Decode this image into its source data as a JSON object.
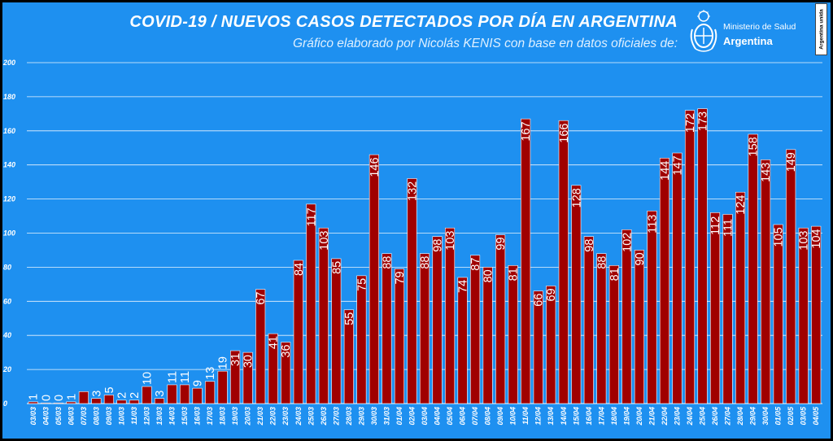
{
  "header": {
    "title": "COVID-19  /  NUEVOS CASOS DETECTADOS POR DÍA EN ARGENTINA",
    "subtitle": "Gráfico elaborado por Nicolás KENIS con base en datos oficiales de:"
  },
  "logo": {
    "icon": "coat-of-arms-icon",
    "line1": "Ministerio de Salud",
    "line2": "Argentina"
  },
  "badge": {
    "text": "Argentina unida"
  },
  "colors": {
    "background": "#1e90f0",
    "bar_fill": "#a00000",
    "bar_stroke": "#ffffff",
    "gridline": "#ffffff",
    "text": "#ffffff"
  },
  "chart_data": {
    "type": "bar",
    "title": "COVID-19  /  NUEVOS CASOS DETECTADOS POR DÍA EN ARGENTINA",
    "xlabel": "",
    "ylabel": "",
    "ylim": [
      0,
      200
    ],
    "yticks": [
      0,
      20,
      40,
      60,
      80,
      100,
      120,
      140,
      160,
      180,
      200
    ],
    "grid": true,
    "legend": "none",
    "categories": [
      "03/03",
      "04/03",
      "05/03",
      "06/03",
      "07/03",
      "08/03",
      "09/03",
      "10/03",
      "11/03",
      "12/03",
      "13/03",
      "14/03",
      "15/03",
      "16/03",
      "17/03",
      "18/03",
      "19/03",
      "20/03",
      "21/03",
      "22/03",
      "23/03",
      "24/03",
      "25/03",
      "26/03",
      "27/03",
      "28/03",
      "29/03",
      "30/03",
      "31/03",
      "01/04",
      "02/04",
      "03/04",
      "04/04",
      "05/04",
      "06/04",
      "07/04",
      "08/04",
      "09/04",
      "10/04",
      "11/04",
      "12/04",
      "13/04",
      "14/04",
      "15/04",
      "16/04",
      "17/04",
      "18/04",
      "19/04",
      "20/04",
      "21/04",
      "22/04",
      "23/04",
      "24/04",
      "25/04",
      "26/04",
      "27/04",
      "28/04",
      "29/04",
      "30/04",
      "01/05",
      "02/05",
      "03/05",
      "04/05"
    ],
    "values": [
      1,
      0,
      0,
      1,
      7,
      3,
      5,
      2,
      2,
      10,
      3,
      11,
      11,
      9,
      13,
      19,
      31,
      30,
      67,
      41,
      36,
      84,
      117,
      103,
      85,
      55,
      75,
      146,
      88,
      79,
      132,
      88,
      98,
      103,
      74,
      87,
      80,
      99,
      81,
      167,
      66,
      69,
      166,
      128,
      98,
      88,
      81,
      102,
      90,
      113,
      144,
      147,
      172,
      173,
      112,
      111,
      124,
      158,
      143,
      105,
      149,
      103,
      104
    ],
    "labels": [
      "1",
      "0",
      "0",
      "1",
      "",
      "3",
      "5",
      "2",
      "2",
      "10",
      "3",
      "11",
      "11",
      "9",
      "13",
      "19",
      "31",
      "30",
      "67",
      "41",
      "36",
      "84",
      "117",
      "103",
      "85",
      "55",
      "75",
      "146",
      "88",
      "79",
      "132",
      "88",
      "98",
      "103",
      "74",
      "87",
      "80",
      "99",
      "81",
      "167",
      "66",
      "69",
      "166",
      "128",
      "98",
      "88",
      "81",
      "102",
      "90",
      "113",
      "144",
      "147",
      "172",
      "173",
      "112",
      "111",
      "124",
      "158",
      "143",
      "105",
      "149",
      "103",
      "104"
    ]
  }
}
